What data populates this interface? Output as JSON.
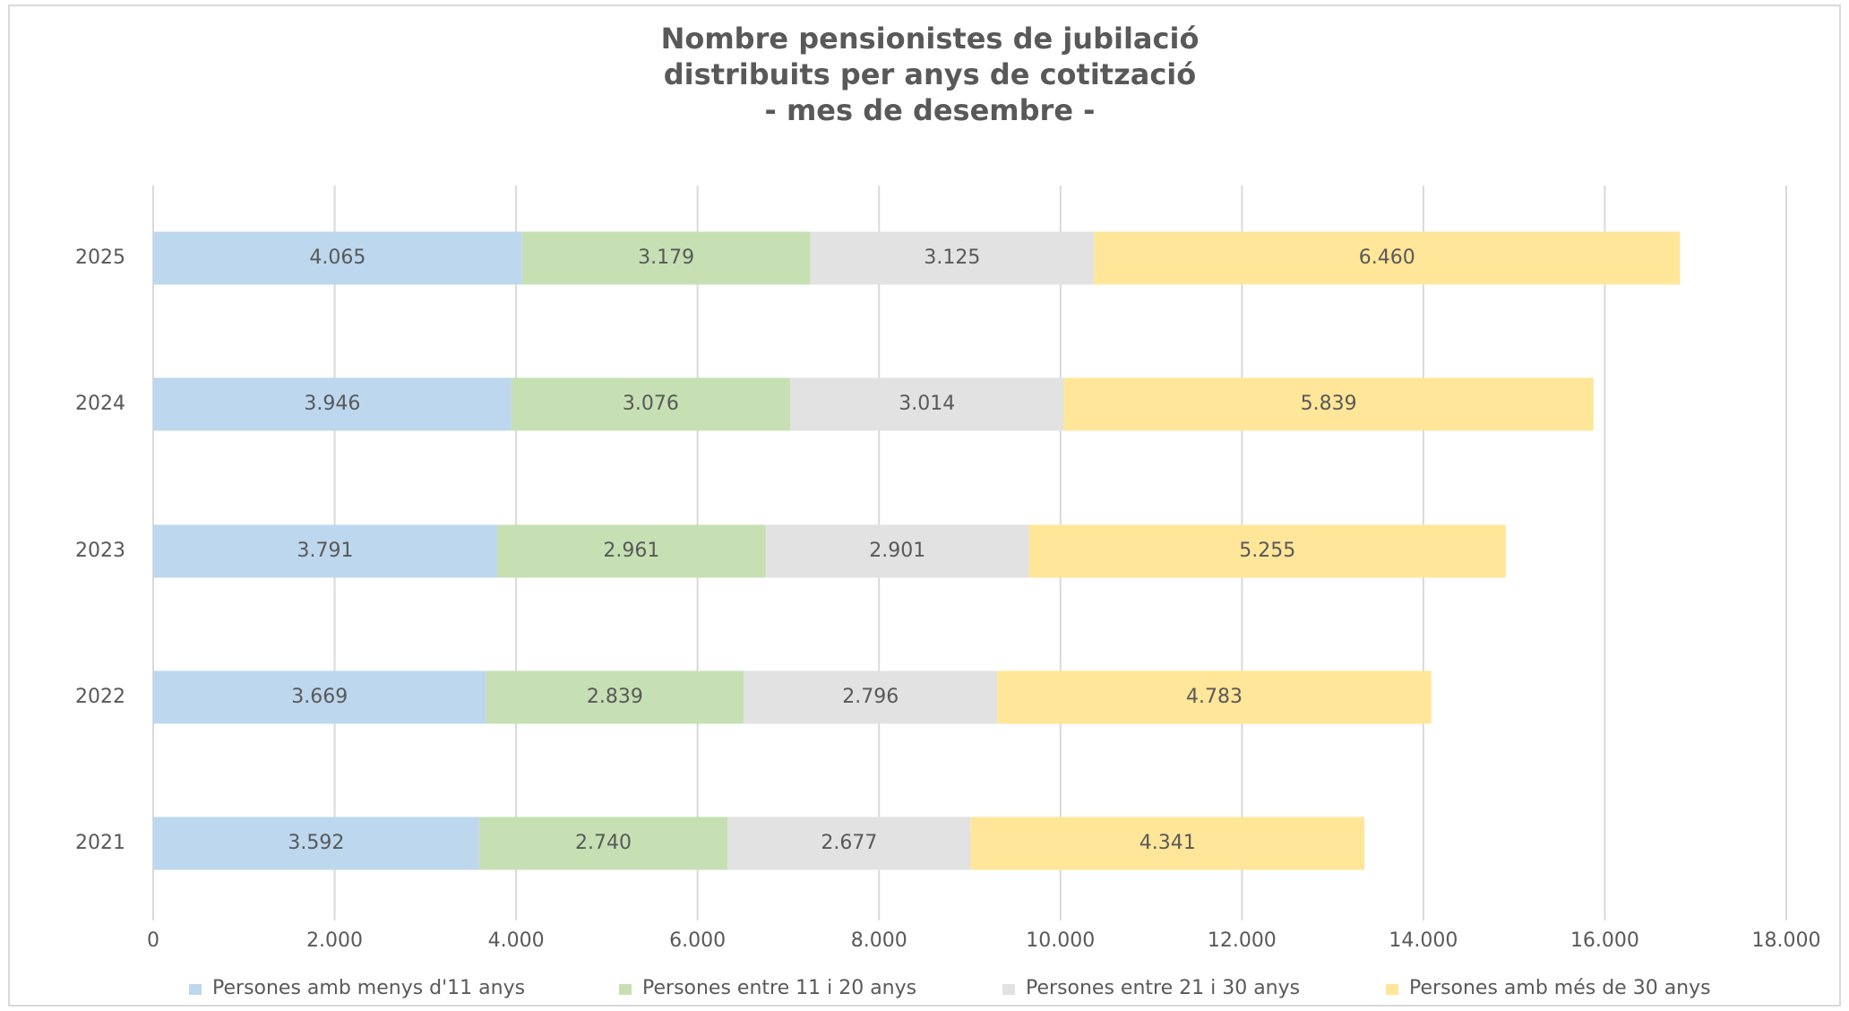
{
  "chart_data": {
    "type": "stacked-barh",
    "title": [
      "Nombre pensionistes de jubilació",
      "distribuits per anys de cotització",
      "- mes de desembre -"
    ],
    "categories": [
      "2025",
      "2024",
      "2023",
      "2022",
      "2021"
    ],
    "series": [
      {
        "name": "Persones amb menys d'11 anys",
        "color": "#bdd7ee",
        "values": [
          4065,
          3946,
          3791,
          3669,
          3592
        ],
        "value_labels": [
          "4.065",
          "3.946",
          "3.791",
          "3.669",
          "3.592"
        ]
      },
      {
        "name": "Persones entre 11 i 20 anys",
        "color": "#c6e0b4",
        "values": [
          3179,
          3076,
          2961,
          2839,
          2740
        ],
        "value_labels": [
          "3.179",
          "3.076",
          "2.961",
          "2.839",
          "2.740"
        ]
      },
      {
        "name": "Persones entre 21 i 30 anys",
        "color": "#e2e2e2",
        "values": [
          3125,
          3014,
          2901,
          2796,
          2677
        ],
        "value_labels": [
          "3.125",
          "3.014",
          "2.901",
          "2.796",
          "2.677"
        ]
      },
      {
        "name": "Persones amb més de 30 anys",
        "color": "#ffe699",
        "values": [
          6460,
          5839,
          5255,
          4783,
          4341
        ],
        "value_labels": [
          "6.460",
          "5.839",
          "5.255",
          "4.783",
          "4.341"
        ]
      }
    ],
    "xlim": [
      0,
      18000
    ],
    "xticks": [
      0,
      {
        "value": 2000,
        "label": "2.000"
      },
      {
        "value": 4000,
        "label": "4.000"
      },
      {
        "value": 6000,
        "label": "6.000"
      },
      {
        "value": 8000,
        "label": "8.000"
      },
      {
        "value": 10000,
        "label": "10.000"
      },
      {
        "value": 12000,
        "label": "12.000"
      },
      {
        "value": 14000,
        "label": "14.000"
      },
      {
        "value": 16000,
        "label": "16.000"
      },
      {
        "value": 18000,
        "label": "18.000"
      }
    ],
    "grid": true,
    "legend": "bottom"
  }
}
